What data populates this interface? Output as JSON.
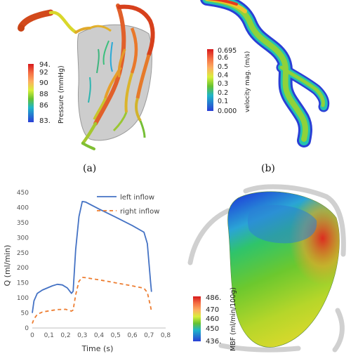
{
  "panels": {
    "a": {
      "caption": "(a)",
      "colorbar": {
        "label": "Pressure (mmHg)",
        "ticks": [
          "94.",
          "92",
          "90",
          "88",
          "86",
          "83."
        ]
      }
    },
    "b": {
      "caption": "(b)",
      "colorbar": {
        "label": "velocity mag. (m/s)",
        "ticks": [
          "0.695",
          "0.6",
          "0.5",
          "0.4",
          "0.3",
          "0.2",
          "0.1",
          "0.000"
        ]
      }
    },
    "d": {
      "colorbar": {
        "label": "MBF (ml/min/100g)",
        "ticks": [
          "486.",
          "470",
          "460",
          "450",
          "436."
        ]
      }
    }
  },
  "colors": {
    "left_inflow": "#4472c4",
    "right_inflow": "#ed7d31"
  },
  "chart_data": {
    "type": "line",
    "title": "",
    "xlabel": "Time (s)",
    "ylabel": "Q (ml/min)",
    "xlim": [
      0,
      0.8
    ],
    "ylim": [
      0,
      450
    ],
    "x_ticks": [
      "0",
      "0,1",
      "0,2",
      "0,3",
      "0,4",
      "0,5",
      "0,6",
      "0,7",
      "0,8"
    ],
    "y_ticks": [
      "0",
      "50",
      "100",
      "150",
      "200",
      "250",
      "300",
      "350",
      "400",
      "450"
    ],
    "grid": false,
    "legend": "top-right",
    "series": [
      {
        "name": "left inflow",
        "style": "solid",
        "x": [
          0,
          0.01,
          0.03,
          0.06,
          0.09,
          0.12,
          0.15,
          0.18,
          0.21,
          0.235,
          0.245,
          0.26,
          0.28,
          0.3,
          0.32,
          0.4,
          0.5,
          0.6,
          0.67,
          0.69,
          0.71,
          0.715
        ],
        "y": [
          50,
          90,
          115,
          126,
          133,
          140,
          145,
          143,
          133,
          115,
          122,
          260,
          370,
          420,
          418,
          395,
          368,
          340,
          318,
          280,
          150,
          120
        ]
      },
      {
        "name": "right inflow",
        "style": "dashed",
        "x": [
          0,
          0.01,
          0.03,
          0.06,
          0.1,
          0.15,
          0.2,
          0.235,
          0.245,
          0.26,
          0.28,
          0.3,
          0.32,
          0.4,
          0.5,
          0.6,
          0.67,
          0.69,
          0.71,
          0.715
        ],
        "y": [
          15,
          30,
          45,
          53,
          57,
          61,
          62,
          56,
          60,
          110,
          155,
          168,
          167,
          160,
          150,
          140,
          132,
          118,
          70,
          55
        ]
      }
    ]
  }
}
